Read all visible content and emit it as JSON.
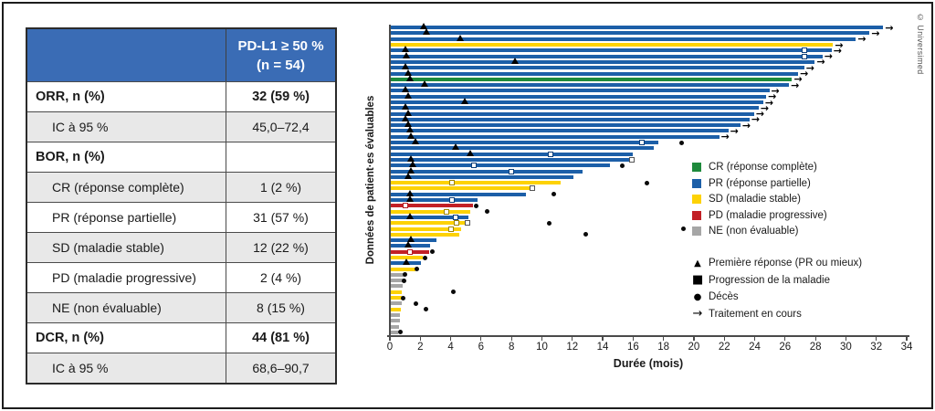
{
  "table": {
    "header": {
      "col2_line1": "PD-L1 ≥ 50 %",
      "col2_line2": "(n = 54)"
    },
    "rows": [
      {
        "label": "ORR, n (%)",
        "value": "32 (59 %)",
        "bold": true,
        "indent": false
      },
      {
        "label": "IC à 95 %",
        "value": "45,0–72,4",
        "bold": false,
        "indent": true
      },
      {
        "label": "BOR, n (%)",
        "value": "",
        "bold": true,
        "indent": false
      },
      {
        "label": "CR (réponse complète)",
        "value": "1 (2 %)",
        "bold": false,
        "indent": true
      },
      {
        "label": "PR (réponse partielle)",
        "value": "31 (57 %)",
        "bold": false,
        "indent": true
      },
      {
        "label": "SD (maladie stable)",
        "value": "12 (22 %)",
        "bold": false,
        "indent": true
      },
      {
        "label": "PD (maladie progressive)",
        "value": "2 (4 %)",
        "bold": false,
        "indent": true
      },
      {
        "label": "NE (non évaluable)",
        "value": "8 (15 %)",
        "bold": false,
        "indent": true
      },
      {
        "label": "DCR, n (%)",
        "value": "44 (81 %)",
        "bold": true,
        "indent": false
      },
      {
        "label": "IC à 95 %",
        "value": "68,6–90,7",
        "bold": false,
        "indent": true
      }
    ]
  },
  "chart_data": {
    "type": "bar",
    "subtype": "swimmer-plot",
    "orientation": "horizontal",
    "title": "",
    "xlabel": "Durée (mois)",
    "ylabel": "Données de patient·es évaluables",
    "xlim": [
      0,
      34
    ],
    "xtick_step": 2,
    "n_patients": 54,
    "bar_colors": {
      "CR": "#1e8a3c",
      "PR": "#1c5fa8",
      "SD": "#fdd205",
      "PD": "#c22026",
      "NE": "#a6a6a6"
    },
    "marker_outline": {
      "CR": "#0d3f7a",
      "PR": "#0d3f7a",
      "SD": "#9c8400",
      "PD": "#b51f24",
      "NE": "#666666"
    },
    "legend_response": [
      {
        "key": "CR",
        "label": "CR (réponse complète)",
        "color": "#1e8a3c"
      },
      {
        "key": "PR",
        "label": "PR (réponse partielle)",
        "color": "#1c5fa8"
      },
      {
        "key": "SD",
        "label": "SD (maladie stable)",
        "color": "#fdd205"
      },
      {
        "key": "PD",
        "label": "PD (maladie progressive)",
        "color": "#c22026"
      },
      {
        "key": "NE",
        "label": "NE (non évaluable)",
        "color": "#a6a6a6"
      }
    ],
    "legend_markers": [
      {
        "symbol": "triangle",
        "label": "Première réponse (PR ou mieux)"
      },
      {
        "symbol": "square",
        "label": "Progression de la maladie"
      },
      {
        "symbol": "circle",
        "label": "Décès"
      },
      {
        "symbol": "arrow",
        "label": "Traitement en cours"
      }
    ],
    "bars": [
      {
        "bor": "PR",
        "months": 32.4,
        "first_response": 2.2,
        "ongoing": true
      },
      {
        "bor": "PR",
        "months": 31.5,
        "first_response": 2.4,
        "ongoing": true
      },
      {
        "bor": "PR",
        "months": 30.6,
        "first_response": 4.6,
        "ongoing": true
      },
      {
        "bor": "SD",
        "months": 29.1,
        "ongoing": true
      },
      {
        "bor": "PR",
        "months": 29.0,
        "first_response": 1.0,
        "progression": 27.3,
        "ongoing": true
      },
      {
        "bor": "PR",
        "months": 28.4,
        "first_response": 1.1,
        "progression": 27.3,
        "ongoing": true
      },
      {
        "bor": "PR",
        "months": 27.9,
        "first_response": 8.2,
        "ongoing": true
      },
      {
        "bor": "PR",
        "months": 27.2,
        "first_response": 1.0,
        "ongoing": true
      },
      {
        "bor": "PR",
        "months": 26.8,
        "first_response": 1.2,
        "ongoing": true
      },
      {
        "bor": "CR",
        "months": 26.4,
        "first_response": 1.3,
        "ongoing": true
      },
      {
        "bor": "PR",
        "months": 26.2,
        "first_response": 2.3,
        "ongoing": true
      },
      {
        "bor": "PR",
        "months": 24.9,
        "first_response": 1.0,
        "ongoing": true
      },
      {
        "bor": "PR",
        "months": 24.7,
        "first_response": 1.2,
        "ongoing": true
      },
      {
        "bor": "PR",
        "months": 24.5,
        "first_response": 4.9,
        "ongoing": true
      },
      {
        "bor": "PR",
        "months": 24.2,
        "first_response": 1.0,
        "ongoing": true
      },
      {
        "bor": "PR",
        "months": 23.9,
        "first_response": 1.2,
        "ongoing": true
      },
      {
        "bor": "PR",
        "months": 23.6,
        "first_response": 1.0,
        "ongoing": true
      },
      {
        "bor": "PR",
        "months": 23.0,
        "first_response": 1.2,
        "ongoing": true
      },
      {
        "bor": "PR",
        "months": 22.2,
        "first_response": 1.3,
        "ongoing": true
      },
      {
        "bor": "PR",
        "months": 21.6,
        "first_response": 1.4,
        "ongoing": true
      },
      {
        "bor": "PR",
        "months": 17.6,
        "first_response": 1.7,
        "progression": 16.6,
        "death": 19.2
      },
      {
        "bor": "PR",
        "months": 17.3,
        "first_response": 4.3
      },
      {
        "bor": "PR",
        "months": 15.9,
        "first_response": 5.3,
        "progression": 10.6
      },
      {
        "bor": "PR",
        "months": 15.7,
        "first_response": 1.4,
        "progression_end": 15.9
      },
      {
        "bor": "PR",
        "months": 14.4,
        "first_response": 1.5,
        "progression": 5.5,
        "death": 15.3
      },
      {
        "bor": "PR",
        "months": 12.6,
        "first_response": 1.4,
        "progression": 8.0
      },
      {
        "bor": "PR",
        "months": 12.0,
        "first_response": 1.2
      },
      {
        "bor": "SD",
        "months": 11.2,
        "progression": 4.1,
        "death": 16.9
      },
      {
        "bor": "SD",
        "months": 9.5,
        "progression_end": 9.4
      },
      {
        "bor": "PR",
        "months": 8.9,
        "first_response": 1.3,
        "death": 10.8
      },
      {
        "bor": "PR",
        "months": 5.7,
        "first_response": 1.3,
        "progression": 4.1
      },
      {
        "bor": "PD",
        "months": 5.4,
        "progression": 1.0,
        "death": 5.7
      },
      {
        "bor": "SD",
        "months": 5.2,
        "progression": 3.7,
        "death": 6.4
      },
      {
        "bor": "PR",
        "months": 5.1,
        "first_response": 1.3,
        "progression": 4.3
      },
      {
        "bor": "SD",
        "months": 5.0,
        "progression": 4.4,
        "progression_end": 5.1,
        "death": 10.5
      },
      {
        "bor": "SD",
        "months": 4.6,
        "progression": 4.0,
        "death": 19.3
      },
      {
        "bor": "SD",
        "months": 4.5,
        "death": 12.9
      },
      {
        "bor": "PR",
        "months": 3.0,
        "first_response": 1.4
      },
      {
        "bor": "PR",
        "months": 2.6,
        "first_response": 1.2
      },
      {
        "bor": "PD",
        "months": 2.5,
        "progression": 1.3,
        "death": 2.8
      },
      {
        "bor": "SD",
        "months": 2.1,
        "death": 2.3
      },
      {
        "bor": "PR",
        "months": 2.0,
        "first_response": 1.1
      },
      {
        "bor": "SD",
        "months": 1.6,
        "death": 1.8
      },
      {
        "bor": "NE",
        "months": 0.9,
        "death": 1.0
      },
      {
        "bor": "NE",
        "months": 0.85,
        "death": 0.95
      },
      {
        "bor": "NE",
        "months": 0.8
      },
      {
        "bor": "SD",
        "months": 0.75,
        "death": 4.2
      },
      {
        "bor": "SD",
        "months": 0.7,
        "death": 0.85
      },
      {
        "bor": "NE",
        "months": 0.7,
        "death": 1.7
      },
      {
        "bor": "SD",
        "months": 0.65,
        "death": 2.4
      },
      {
        "bor": "NE",
        "months": 0.6
      },
      {
        "bor": "NE",
        "months": 0.6
      },
      {
        "bor": "NE",
        "months": 0.55
      },
      {
        "bor": "NE",
        "months": 0.5,
        "death": 0.7
      }
    ]
  },
  "copyright": "© Universimed"
}
